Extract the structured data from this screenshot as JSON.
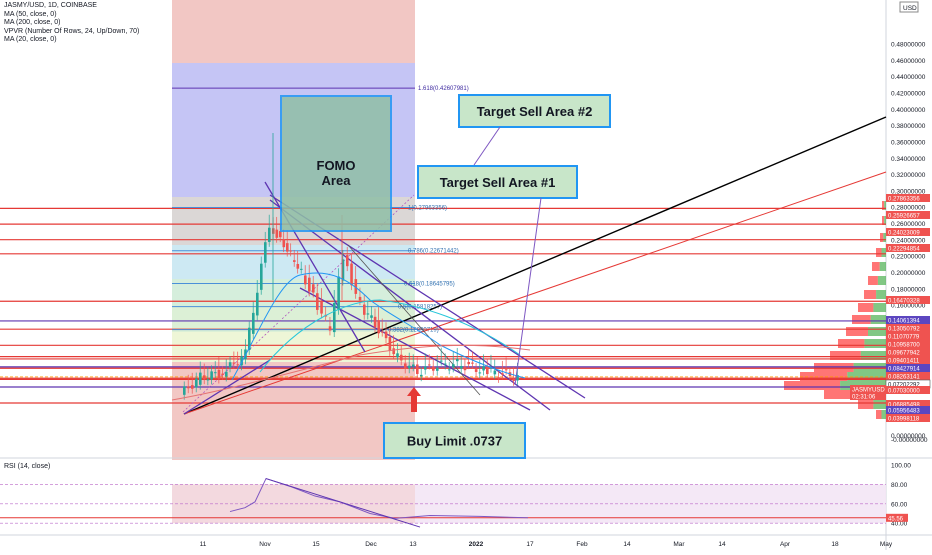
{
  "legend": {
    "symbol": "JASMY/USD, 1D, COINBASE",
    "indicators": [
      "MA (50, close, 0)",
      "MA (200, close, 0)",
      "VPVR (Number Of Rows, 24, Up/Down, 70)",
      "MA (20, close, 0)"
    ]
  },
  "currency_label": "USD",
  "rsi_title": "RSI (14, close)",
  "annotations": {
    "fomo": "FOMO\nArea",
    "target1": "Target Sell Area #1",
    "target2": "Target Sell Area #2",
    "buy": "Buy Limit .0737"
  },
  "colors": {
    "up": "#26a69a",
    "down": "#ef5350",
    "red_line": "#e53935",
    "purple_line": "#5e35b1",
    "fomo_fill": "#8fbfa6",
    "box_border": "#2196f3",
    "label_fill": "#c8e6c9",
    "vpvr_red": "#ff5252",
    "vpvr_green": "#4caf50"
  },
  "chart_data": [
    {
      "type": "line",
      "title": "JASMY/USD, 1D, COINBASE",
      "ylim": [
        -0.02,
        0.49
      ],
      "y_ticks": [
        "0.48000000",
        "0.46000000",
        "0.44000000",
        "0.42000000",
        "0.40000000",
        "0.38000000",
        "0.36000000",
        "0.34000000",
        "0.32000000",
        "0.30000000",
        "0.28000000",
        "0.26000000",
        "0.24000000",
        "0.22000000",
        "0.20000000",
        "0.18000000",
        "0.16000000",
        "0.14000000",
        "0.12000000",
        "0.10000000",
        "0.08000000",
        "0.06000000",
        "0.04000000",
        "0.02000000",
        "0.00000000",
        "-0.00000000"
      ],
      "x_ticks": [
        "11",
        "Nov",
        "15",
        "Dec",
        "13",
        "2022",
        "17",
        "Feb",
        "14",
        "Mar",
        "14",
        "Apr",
        "18",
        "May"
      ],
      "price_badges": [
        {
          "label": "0.27863356",
          "kind": "red"
        },
        {
          "label": "0.25926657",
          "kind": "red"
        },
        {
          "label": "0.24023009",
          "kind": "red"
        },
        {
          "label": "0.22294854",
          "kind": "red"
        },
        {
          "label": "0.16470328",
          "kind": "red"
        },
        {
          "label": "0.14061394",
          "kind": "purple"
        },
        {
          "label": "0.13050792",
          "kind": "red"
        },
        {
          "label": "0.11070779",
          "kind": "red"
        },
        {
          "label": "0.10958700",
          "kind": "red"
        },
        {
          "label": "0.09677942",
          "kind": "red"
        },
        {
          "label": "0.09401411",
          "kind": "red"
        },
        {
          "label": "0.08427914",
          "kind": "purple"
        },
        {
          "label": "0.08263141",
          "kind": "red"
        },
        {
          "label": "0.07202292",
          "kind": "white"
        },
        {
          "label": "0.07030000",
          "kind": "red"
        },
        {
          "label": "JASMYUSD",
          "kind": "red"
        },
        {
          "label": "02:31:06",
          "kind": "red"
        },
        {
          "label": "0.06885498",
          "kind": "red"
        },
        {
          "label": "0.05956483",
          "kind": "purple"
        },
        {
          "label": "0.03998118",
          "kind": "red"
        }
      ],
      "fib_labels": [
        "1.618(0.42607981)",
        "1(0.27963356)",
        "0.786(0.22671442)",
        "0.618(0.18645795)",
        "0.5(0.15818257)",
        "0.382(0.12990719)"
      ],
      "price_path": [
        {
          "x": "Oct 4",
          "close": 0.05
        },
        {
          "x": "Oct 11",
          "close": 0.072
        },
        {
          "x": "Oct 18",
          "close": 0.076
        },
        {
          "x": "Oct 25",
          "close": 0.1
        },
        {
          "x": "Nov 1",
          "close": 0.26
        },
        {
          "x": "Nov 5",
          "close": 0.23
        },
        {
          "x": "Nov 10",
          "close": 0.21
        },
        {
          "x": "Nov 15",
          "close": 0.17
        },
        {
          "x": "Nov 20",
          "close": 0.13
        },
        {
          "x": "Nov 25",
          "close": 0.22
        },
        {
          "x": "Nov 30",
          "close": 0.16
        },
        {
          "x": "Dec 5",
          "close": 0.13
        },
        {
          "x": "Dec 10",
          "close": 0.095
        },
        {
          "x": "Dec 15",
          "close": 0.078
        },
        {
          "x": "Dec 20",
          "close": 0.086
        },
        {
          "x": "Dec 25",
          "close": 0.088
        },
        {
          "x": "Jan 1",
          "close": 0.08
        },
        {
          "x": "Jan 8",
          "close": 0.072
        }
      ]
    },
    {
      "type": "line",
      "title": "RSI (14, close)",
      "ylim": [
        30,
        100
      ],
      "y_ticks": [
        "100.00",
        "80.00",
        "60.00",
        "40.00"
      ],
      "current_value_label": "45.56",
      "x": [
        "Oct 11",
        "Oct 20",
        "Oct 28",
        "Nov 1",
        "Nov 8",
        "Nov 15",
        "Nov 22",
        "Dec 1",
        "Dec 10",
        "Dec 20",
        "Jan 1",
        "Jan 10"
      ],
      "values": [
        52,
        56,
        62,
        86,
        78,
        68,
        62,
        50,
        45,
        48,
        47,
        45.56
      ]
    }
  ]
}
